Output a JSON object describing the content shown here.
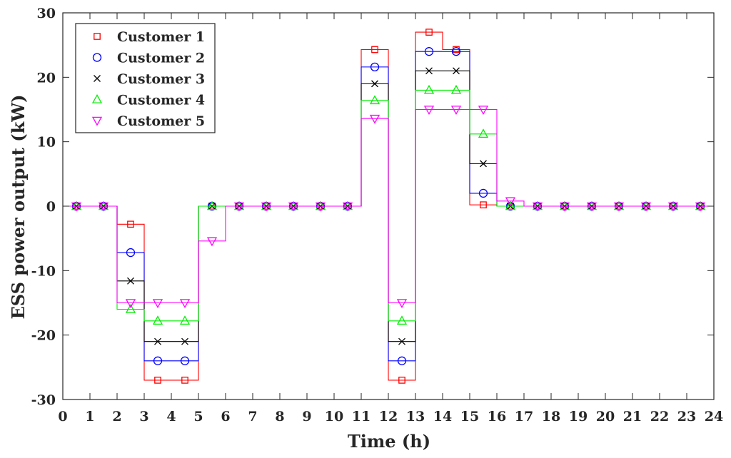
{
  "chart_data": {
    "type": "line",
    "step": true,
    "xlabel": "Time (h)",
    "ylabel": "ESS power output (kW)",
    "xlim": [
      0,
      24
    ],
    "ylim": [
      -30,
      30
    ],
    "xticks": [
      0,
      1,
      2,
      3,
      4,
      5,
      6,
      7,
      8,
      9,
      10,
      11,
      12,
      13,
      14,
      15,
      16,
      17,
      18,
      19,
      20,
      21,
      22,
      23,
      24
    ],
    "yticks": [
      -30,
      -20,
      -10,
      0,
      10,
      20,
      30
    ],
    "legend_position": "top-left",
    "grid": false,
    "x": [
      0,
      1,
      2,
      3,
      4,
      5,
      6,
      7,
      8,
      9,
      10,
      11,
      12,
      13,
      14,
      15,
      16,
      17,
      18,
      19,
      20,
      21,
      22,
      23
    ],
    "series": [
      {
        "name": "Customer 1",
        "color": "#ff0000",
        "marker": "square",
        "values": [
          0,
          0,
          -2.8,
          -27,
          -27,
          0,
          0,
          0,
          0,
          0,
          0,
          24.3,
          -27,
          27,
          24.3,
          0.2,
          0,
          0,
          0,
          0,
          0,
          0,
          0,
          0
        ]
      },
      {
        "name": "Customer 2",
        "color": "#0000ff",
        "marker": "circle",
        "values": [
          0,
          0,
          -7.2,
          -24,
          -24,
          0,
          0,
          0,
          0,
          0,
          0,
          21.6,
          -24,
          24,
          24,
          2,
          0,
          0,
          0,
          0,
          0,
          0,
          0,
          0
        ]
      },
      {
        "name": "Customer 3",
        "color": "#000000",
        "marker": "x",
        "values": [
          0,
          0,
          -11.6,
          -21,
          -21,
          0,
          0,
          0,
          0,
          0,
          0,
          19,
          -21,
          21,
          21,
          6.6,
          0,
          0,
          0,
          0,
          0,
          0,
          0,
          0
        ]
      },
      {
        "name": "Customer 4",
        "color": "#00ee00",
        "marker": "triangle-up",
        "values": [
          0,
          0,
          -16,
          -17.8,
          -17.8,
          0,
          0,
          0,
          0,
          0,
          0,
          16.4,
          -17.8,
          18,
          18,
          11.2,
          0,
          0,
          0,
          0,
          0,
          0,
          0,
          0
        ]
      },
      {
        "name": "Customer 5",
        "color": "#ff00ff",
        "marker": "triangle-down",
        "values": [
          0,
          0,
          -15,
          -15,
          -15,
          -5.4,
          0,
          0,
          0,
          0,
          0,
          13.6,
          -15,
          15,
          15,
          15,
          0.8,
          0,
          0,
          0,
          0,
          0,
          0,
          0
        ]
      }
    ]
  }
}
